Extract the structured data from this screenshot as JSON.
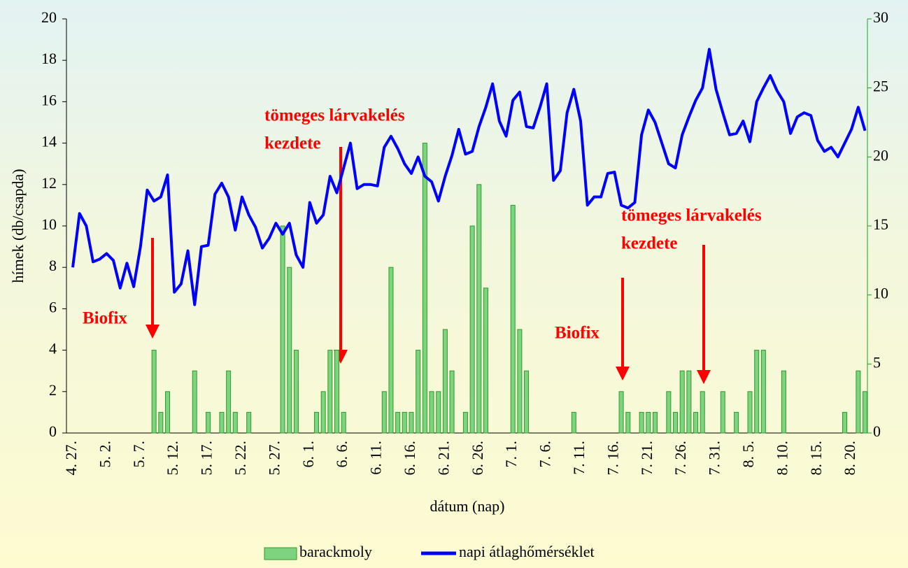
{
  "chart_data": {
    "type": "bar",
    "x_label": "dátum (nap)",
    "y_label": "hímek (db/csapda)",
    "categories": [
      "4. 27.",
      null,
      null,
      null,
      null,
      "5. 2.",
      null,
      null,
      null,
      null,
      "5. 7.",
      null,
      null,
      null,
      null,
      "5. 12.",
      null,
      null,
      null,
      null,
      "5. 17.",
      null,
      null,
      null,
      null,
      "5. 22.",
      null,
      null,
      null,
      null,
      "5. 27.",
      null,
      null,
      null,
      null,
      "6. 1.",
      null,
      null,
      null,
      null,
      "6. 6.",
      null,
      null,
      null,
      null,
      "6. 11.",
      null,
      null,
      null,
      null,
      "6. 16.",
      null,
      null,
      null,
      null,
      "6. 21.",
      null,
      null,
      null,
      null,
      "6. 26.",
      null,
      null,
      null,
      null,
      "7. 1.",
      null,
      null,
      null,
      null,
      "7. 6.",
      null,
      null,
      null,
      null,
      "7. 11.",
      null,
      null,
      null,
      null,
      "7. 16.",
      null,
      null,
      null,
      null,
      "7. 21.",
      null,
      null,
      null,
      null,
      "7. 26.",
      null,
      null,
      null,
      null,
      "7. 31.",
      null,
      null,
      null,
      null,
      "8. 5.",
      null,
      null,
      null,
      null,
      "8. 10.",
      null,
      null,
      null,
      null,
      "8. 15.",
      null,
      null,
      null,
      null,
      "8. 20.",
      null,
      null
    ],
    "series": [
      {
        "name": "barackmoly",
        "type": "bar",
        "color": "#7ed47e",
        "values": [
          0,
          0,
          0,
          0,
          0,
          0,
          0,
          0,
          0,
          0,
          0,
          0,
          4,
          1,
          2,
          0,
          0,
          0,
          3,
          0,
          1,
          0,
          1,
          3,
          1,
          0,
          1,
          0,
          0,
          0,
          0,
          10,
          8,
          4,
          0,
          0,
          1,
          2,
          4,
          4,
          1,
          0,
          0,
          0,
          0,
          0,
          2,
          8,
          1,
          1,
          1,
          4,
          14,
          2,
          2,
          5,
          3,
          0,
          1,
          10,
          12,
          7,
          0,
          0,
          0,
          11,
          5,
          3,
          0,
          0,
          0,
          0,
          0,
          0,
          1,
          0,
          0,
          0,
          0,
          0,
          0,
          2,
          1,
          0,
          1,
          1,
          1,
          0,
          2,
          1,
          3,
          3,
          1,
          2,
          0,
          0,
          2,
          0,
          1,
          0,
          2,
          4,
          4,
          0,
          0,
          3,
          0,
          0,
          0,
          0,
          0,
          0,
          0,
          0,
          1,
          0,
          3,
          2
        ]
      },
      {
        "name": "napi átlaghőmérséklet",
        "type": "line",
        "axis": "y2",
        "color": "#0000ff",
        "values": [
          12,
          15.9,
          15,
          12.4,
          12.6,
          13,
          12.5,
          10.5,
          12.3,
          10.6,
          13.5,
          17.6,
          16.8,
          17.1,
          18.7,
          10.2,
          10.8,
          13.2,
          9.3,
          13.5,
          13.6,
          17.3,
          18.1,
          17.1,
          14.7,
          17.1,
          15.8,
          14.9,
          13.4,
          14.1,
          15.2,
          14.4,
          15.2,
          12.9,
          12,
          16.7,
          15.2,
          15.8,
          18.6,
          17.4,
          19.2,
          21,
          17.7,
          18,
          18,
          17.9,
          20.7,
          21.5,
          20.6,
          19.5,
          18.8,
          20,
          18.6,
          18.2,
          16.8,
          18.6,
          20.1,
          22,
          20.2,
          20.4,
          22.2,
          23.6,
          25.3,
          22.6,
          21.5,
          24.1,
          24.7,
          22.2,
          22.1,
          23.6,
          25.3,
          18.3,
          19,
          23.2,
          24.9,
          22.6,
          16.5,
          17.1,
          17.1,
          18.8,
          18.9,
          16.5,
          16.3,
          16.7,
          21.6,
          23.4,
          22.5,
          21,
          19.5,
          19.2,
          21.6,
          22.9,
          24.1,
          25,
          27.8,
          24.9,
          23.2,
          21.6,
          21.7,
          22.6,
          21.1,
          24,
          25,
          25.9,
          24.8,
          24,
          21.7,
          22.9,
          23.2,
          23,
          21.2,
          20.4,
          20.7,
          20,
          21,
          22,
          23.6,
          21.9
        ]
      }
    ],
    "ylim": [
      0,
      20
    ],
    "yticks": [
      0,
      2,
      4,
      6,
      8,
      10,
      12,
      14,
      16,
      18,
      20
    ],
    "y2lim": [
      0,
      30
    ],
    "y2ticks": [
      0,
      5,
      10,
      15,
      20,
      25,
      30
    ],
    "grid": false,
    "legend": "bottom",
    "annotations": [
      {
        "lines": [
          "Biofix"
        ]
      },
      {
        "lines": [
          "tömeges lárvakelés",
          "kezdete"
        ]
      },
      {
        "lines": [
          "Biofix"
        ]
      },
      {
        "lines": [
          "tömeges lárvakelés",
          "kezdete"
        ]
      }
    ]
  }
}
